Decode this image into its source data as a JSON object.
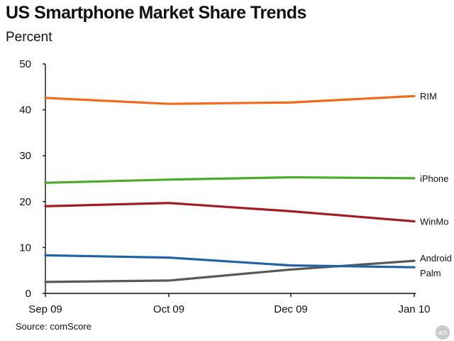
{
  "title": "US Smartphone Market Share Trends",
  "subtitle": "Percent",
  "source": "Source: comScore",
  "watermark": "ars",
  "chart_data": {
    "type": "line",
    "title": "US Smartphone Market Share Trends",
    "subtitle": "Percent",
    "xlabel": "",
    "ylabel": "",
    "categories": [
      "Sep 09",
      "Oct 09",
      "Dec 09",
      "Jan 10"
    ],
    "ylim": [
      0,
      50
    ],
    "yticks": [
      0,
      10,
      20,
      30,
      40,
      50
    ],
    "grid": false,
    "legend": "inline labels at right end of each line",
    "series": [
      {
        "name": "RIM",
        "color": "#f26b1d",
        "values": [
          42.6,
          41.3,
          41.6,
          43.0
        ]
      },
      {
        "name": "iPhone",
        "color": "#4aaa2c",
        "values": [
          24.1,
          24.8,
          25.3,
          25.1
        ]
      },
      {
        "name": "WinMo",
        "color": "#a11d22",
        "values": [
          19.0,
          19.7,
          17.9,
          15.7
        ]
      },
      {
        "name": "Android",
        "color": "#595959",
        "values": [
          2.5,
          2.8,
          5.2,
          7.1
        ]
      },
      {
        "name": "Palm",
        "color": "#2163a2",
        "values": [
          8.3,
          7.8,
          6.1,
          5.7
        ]
      }
    ]
  }
}
